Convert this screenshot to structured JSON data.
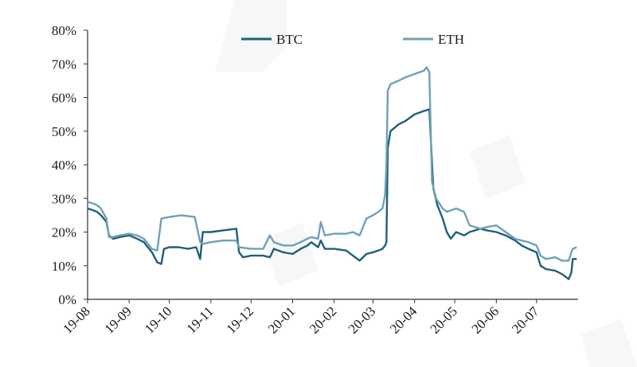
{
  "chart_data": {
    "type": "line",
    "title": "",
    "xlabel": "",
    "ylabel": "",
    "x_ticks": [
      "19-08",
      "19-09",
      "19-10",
      "19-11",
      "19-12",
      "20-01",
      "20-02",
      "20-03",
      "20-04",
      "20-05",
      "20-06",
      "20-07"
    ],
    "y_ticks": [
      "0%",
      "10%",
      "20%",
      "30%",
      "40%",
      "50%",
      "60%",
      "70%",
      "80%"
    ],
    "ylim": [
      0,
      80
    ],
    "y_unit": "%",
    "grid": false,
    "legend_position": "top-center",
    "series": [
      {
        "name": "BTC",
        "color": "#1f5f7a",
        "values": [
          [
            "2019-08-01",
            27
          ],
          [
            "2019-08-05",
            26.5
          ],
          [
            "2019-08-08",
            26
          ],
          [
            "2019-08-11",
            25
          ],
          [
            "2019-08-15",
            23
          ],
          [
            "2019-08-17",
            19
          ],
          [
            "2019-08-20",
            18
          ],
          [
            "2019-08-25",
            18.5
          ],
          [
            "2019-09-01",
            19
          ],
          [
            "2019-09-07",
            18
          ],
          [
            "2019-09-12",
            17
          ],
          [
            "2019-09-18",
            14
          ],
          [
            "2019-09-22",
            11
          ],
          [
            "2019-09-25",
            10.5
          ],
          [
            "2019-09-27",
            15
          ],
          [
            "2019-10-01",
            15.5
          ],
          [
            "2019-10-08",
            15.5
          ],
          [
            "2019-10-15",
            15
          ],
          [
            "2019-10-21",
            15.5
          ],
          [
            "2019-10-24",
            12
          ],
          [
            "2019-10-26",
            20
          ],
          [
            "2019-11-01",
            20
          ],
          [
            "2019-11-10",
            20.5
          ],
          [
            "2019-11-20",
            21
          ],
          [
            "2019-11-22",
            14
          ],
          [
            "2019-11-25",
            12.5
          ],
          [
            "2019-12-01",
            13
          ],
          [
            "2019-12-10",
            13
          ],
          [
            "2019-12-15",
            12.5
          ],
          [
            "2019-12-18",
            15
          ],
          [
            "2019-12-25",
            14
          ],
          [
            "2020-01-01",
            13.5
          ],
          [
            "2020-01-07",
            15
          ],
          [
            "2020-01-12",
            16
          ],
          [
            "2020-01-15",
            17
          ],
          [
            "2020-01-20",
            15.5
          ],
          [
            "2020-01-22",
            17.5
          ],
          [
            "2020-01-25",
            15
          ],
          [
            "2020-02-01",
            15
          ],
          [
            "2020-02-10",
            14.5
          ],
          [
            "2020-02-15",
            13
          ],
          [
            "2020-02-20",
            11.5
          ],
          [
            "2020-02-25",
            13.5
          ],
          [
            "2020-03-01",
            14
          ],
          [
            "2020-03-05",
            14.5
          ],
          [
            "2020-03-08",
            15
          ],
          [
            "2020-03-10",
            16
          ],
          [
            "2020-03-11",
            17
          ],
          [
            "2020-03-12",
            45
          ],
          [
            "2020-03-14",
            50
          ],
          [
            "2020-03-20",
            52
          ],
          [
            "2020-03-25",
            53
          ],
          [
            "2020-04-01",
            55
          ],
          [
            "2020-04-08",
            56
          ],
          [
            "2020-04-12",
            56.5
          ],
          [
            "2020-04-15",
            33
          ],
          [
            "2020-04-18",
            28
          ],
          [
            "2020-04-22",
            24
          ],
          [
            "2020-04-25",
            20
          ],
          [
            "2020-04-28",
            18
          ],
          [
            "2020-05-02",
            20
          ],
          [
            "2020-05-08",
            19
          ],
          [
            "2020-05-12",
            20
          ],
          [
            "2020-05-20",
            21
          ],
          [
            "2020-05-25",
            20.5
          ],
          [
            "2020-06-01",
            20
          ],
          [
            "2020-06-08",
            19
          ],
          [
            "2020-06-15",
            17.5
          ],
          [
            "2020-06-20",
            16
          ],
          [
            "2020-06-25",
            15
          ],
          [
            "2020-07-01",
            14
          ],
          [
            "2020-07-04",
            10
          ],
          [
            "2020-07-08",
            9
          ],
          [
            "2020-07-15",
            8.5
          ],
          [
            "2020-07-20",
            7.5
          ],
          [
            "2020-07-25",
            6
          ],
          [
            "2020-07-27",
            8
          ],
          [
            "2020-07-28",
            12
          ],
          [
            "2020-07-31",
            12
          ]
        ]
      },
      {
        "name": "ETH",
        "color": "#6fa0b8",
        "values": [
          [
            "2019-08-01",
            29
          ],
          [
            "2019-08-05",
            28.5
          ],
          [
            "2019-08-08",
            28
          ],
          [
            "2019-08-11",
            27
          ],
          [
            "2019-08-15",
            24
          ],
          [
            "2019-08-17",
            18.5
          ],
          [
            "2019-08-20",
            18.5
          ],
          [
            "2019-08-25",
            19
          ],
          [
            "2019-09-01",
            19.5
          ],
          [
            "2019-09-07",
            19
          ],
          [
            "2019-09-12",
            18
          ],
          [
            "2019-09-18",
            15
          ],
          [
            "2019-09-22",
            14.5
          ],
          [
            "2019-09-25",
            24
          ],
          [
            "2019-10-01",
            24.5
          ],
          [
            "2019-10-10",
            25
          ],
          [
            "2019-10-20",
            24.5
          ],
          [
            "2019-10-24",
            17
          ],
          [
            "2019-10-26",
            16.5
          ],
          [
            "2019-11-01",
            17
          ],
          [
            "2019-11-10",
            17.5
          ],
          [
            "2019-11-20",
            17.5
          ],
          [
            "2019-11-22",
            15.5
          ],
          [
            "2019-12-01",
            15
          ],
          [
            "2019-12-10",
            15
          ],
          [
            "2019-12-15",
            19
          ],
          [
            "2019-12-18",
            17
          ],
          [
            "2019-12-25",
            16
          ],
          [
            "2020-01-01",
            16
          ],
          [
            "2020-01-07",
            17
          ],
          [
            "2020-01-12",
            18
          ],
          [
            "2020-01-15",
            18.5
          ],
          [
            "2020-01-20",
            18
          ],
          [
            "2020-01-22",
            23
          ],
          [
            "2020-01-25",
            19
          ],
          [
            "2020-02-01",
            19.5
          ],
          [
            "2020-02-10",
            19.5
          ],
          [
            "2020-02-15",
            20
          ],
          [
            "2020-02-20",
            19
          ],
          [
            "2020-02-25",
            24
          ],
          [
            "2020-03-01",
            25
          ],
          [
            "2020-03-05",
            26
          ],
          [
            "2020-03-08",
            27
          ],
          [
            "2020-03-10",
            31
          ],
          [
            "2020-03-11",
            40
          ],
          [
            "2020-03-12",
            62
          ],
          [
            "2020-03-14",
            64
          ],
          [
            "2020-03-20",
            65
          ],
          [
            "2020-03-25",
            66
          ],
          [
            "2020-04-01",
            67
          ],
          [
            "2020-04-08",
            68
          ],
          [
            "2020-04-10",
            69
          ],
          [
            "2020-04-12",
            67.5
          ],
          [
            "2020-04-14",
            35
          ],
          [
            "2020-04-17",
            30
          ],
          [
            "2020-04-22",
            27
          ],
          [
            "2020-04-25",
            26
          ],
          [
            "2020-05-02",
            27
          ],
          [
            "2020-05-08",
            26
          ],
          [
            "2020-05-12",
            22
          ],
          [
            "2020-05-20",
            21
          ],
          [
            "2020-05-25",
            21.5
          ],
          [
            "2020-06-01",
            22
          ],
          [
            "2020-06-08",
            20
          ],
          [
            "2020-06-15",
            18
          ],
          [
            "2020-06-20",
            17.5
          ],
          [
            "2020-06-25",
            17
          ],
          [
            "2020-07-01",
            16
          ],
          [
            "2020-07-04",
            13
          ],
          [
            "2020-07-08",
            12
          ],
          [
            "2020-07-15",
            12.5
          ],
          [
            "2020-07-20",
            11.5
          ],
          [
            "2020-07-25",
            11.5
          ],
          [
            "2020-07-27",
            14
          ],
          [
            "2020-07-28",
            15
          ],
          [
            "2020-07-31",
            15.5
          ]
        ]
      }
    ]
  }
}
